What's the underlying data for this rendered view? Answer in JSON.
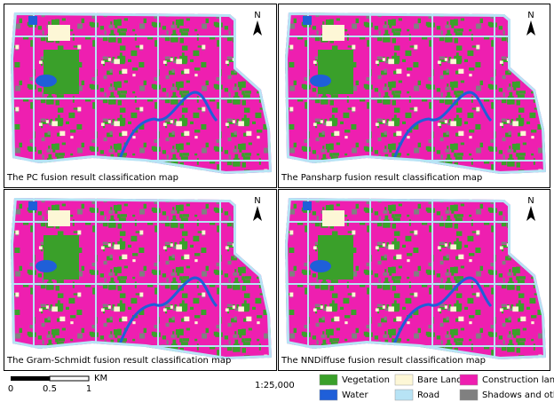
{
  "north_label": "N",
  "panels": [
    {
      "caption": "The PC fusion result classification map"
    },
    {
      "caption": "The Pansharp fusion result classification map"
    },
    {
      "caption": "The Gram-Schmidt fusion result classification map"
    },
    {
      "caption": "The NNDiffuse fusion result classification map"
    }
  ],
  "scale_bar": {
    "ticks": [
      "0",
      "0.5",
      "1"
    ],
    "unit": "KM"
  },
  "scale_ratio": "1:25,000",
  "legend": [
    {
      "label": "Vegetation",
      "color": "#3aa02a"
    },
    {
      "label": "Bare Land",
      "color": "#fdf7d6"
    },
    {
      "label": "Construction land",
      "color": "#ee1fb0"
    },
    {
      "label": "Water",
      "color": "#1f5fd8"
    },
    {
      "label": "Road",
      "color": "#b7e3f5"
    },
    {
      "label": "Shadows and others",
      "color": "#808080"
    }
  ]
}
